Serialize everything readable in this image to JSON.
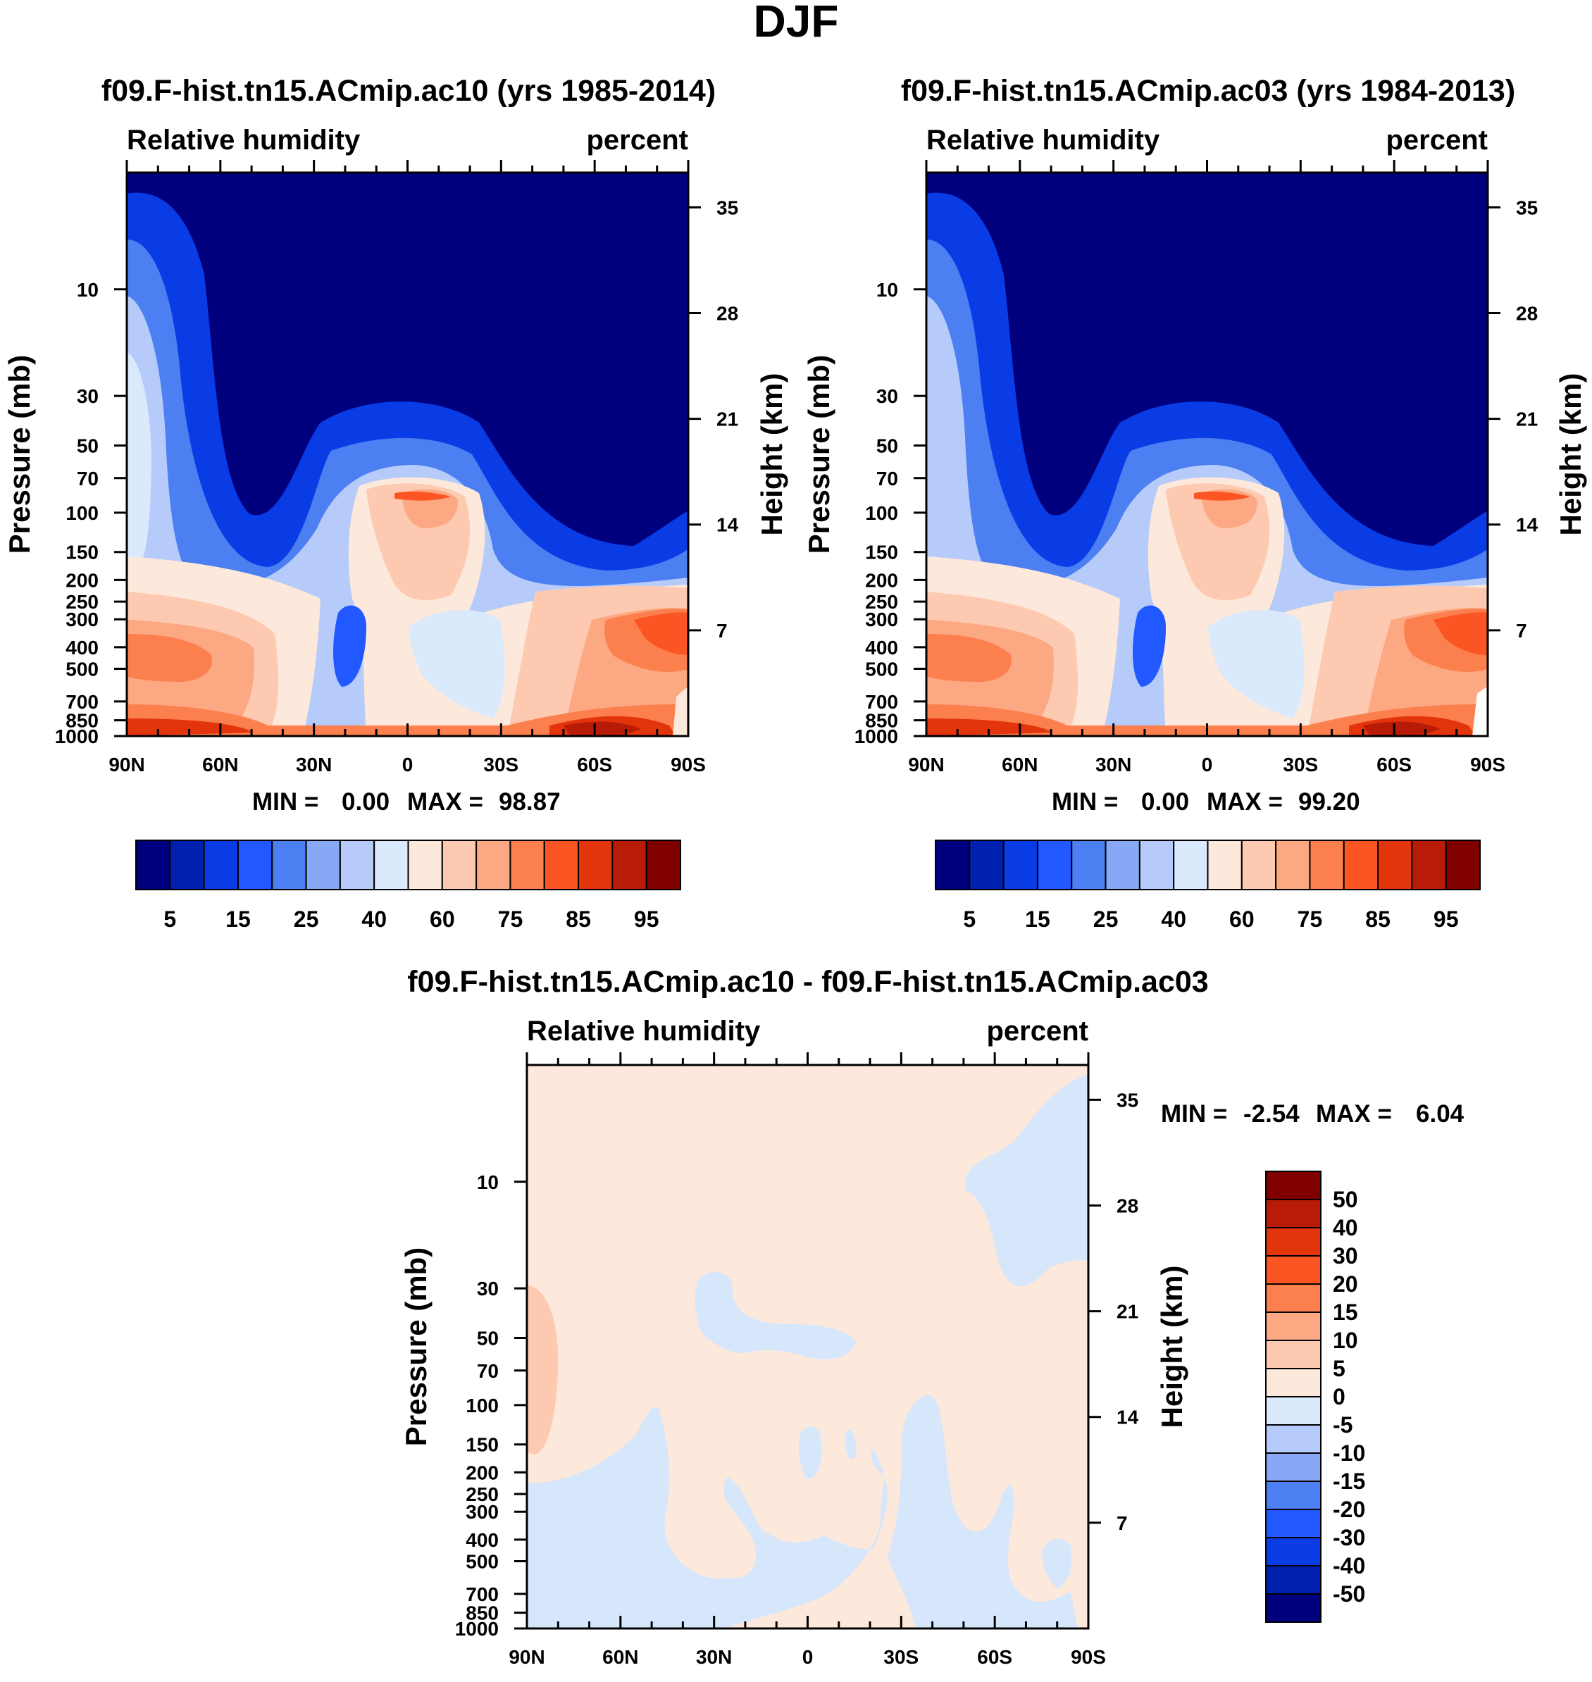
{
  "figure_title": "DJF",
  "chart_data": [
    {
      "type": "heatmap",
      "title": "f09.F-hist.tn15.ACmip.ac10 (yrs 1985-2014)",
      "left_string": "Relative humidity",
      "right_string": "percent",
      "ylabel": "Pressure (mb)",
      "ylabel_right": "Height (km)",
      "x_ticks": [
        "90N",
        "60N",
        "30N",
        "0",
        "30S",
        "60S",
        "90S"
      ],
      "y_ticks": [
        10,
        30,
        50,
        70,
        100,
        150,
        200,
        250,
        300,
        400,
        500,
        700,
        850,
        1000
      ],
      "y_ticks_right": [
        35,
        28,
        21,
        14,
        7
      ],
      "ylim": [
        1000,
        3
      ],
      "min_label": "MIN =",
      "min_value": "0.00",
      "max_label": "MAX =",
      "max_value": "98.87",
      "colorbar_labels": [
        "5",
        "15",
        "25",
        "40",
        "60",
        "75",
        "85",
        "95"
      ]
    },
    {
      "type": "heatmap",
      "title": "f09.F-hist.tn15.ACmip.ac03 (yrs 1984-2013)",
      "left_string": "Relative humidity",
      "right_string": "percent",
      "ylabel": "Pressure (mb)",
      "ylabel_right": "Height (km)",
      "x_ticks": [
        "90N",
        "60N",
        "30N",
        "0",
        "30S",
        "60S",
        "90S"
      ],
      "y_ticks": [
        10,
        30,
        50,
        70,
        100,
        150,
        200,
        250,
        300,
        400,
        500,
        700,
        850,
        1000
      ],
      "y_ticks_right": [
        35,
        28,
        21,
        14,
        7
      ],
      "ylim": [
        1000,
        3
      ],
      "min_label": "MIN =",
      "min_value": "0.00",
      "max_label": "MAX =",
      "max_value": "99.20",
      "colorbar_labels": [
        "5",
        "15",
        "25",
        "40",
        "60",
        "75",
        "85",
        "95"
      ]
    },
    {
      "type": "heatmap",
      "title": "f09.F-hist.tn15.ACmip.ac10 - f09.F-hist.tn15.ACmip.ac03",
      "left_string": "Relative humidity",
      "right_string": "percent",
      "ylabel": "Pressure (mb)",
      "ylabel_right": "Height (km)",
      "x_ticks": [
        "90N",
        "60N",
        "30N",
        "0",
        "30S",
        "60S",
        "90S"
      ],
      "y_ticks": [
        10,
        30,
        50,
        70,
        100,
        150,
        200,
        250,
        300,
        400,
        500,
        700,
        850,
        1000
      ],
      "y_ticks_right": [
        35,
        28,
        21,
        14,
        7
      ],
      "ylim": [
        1000,
        3
      ],
      "min_label": "MIN =",
      "min_value": "-2.54",
      "max_label": "MAX =",
      "max_value": "6.04",
      "colorbar_labels": [
        "50",
        "40",
        "30",
        "20",
        "15",
        "10",
        "5",
        "0",
        "-5",
        "-10",
        "-15",
        "-20",
        "-30",
        "-40",
        "-50"
      ]
    }
  ],
  "colors": {
    "scale": [
      "#00007f",
      "#0021b0",
      "#0a3ce6",
      "#2158ff",
      "#4b7ff2",
      "#88a8f5",
      "#b6cbfa",
      "#dae9fc",
      "#fde9db",
      "#fdc9b0",
      "#fca882",
      "#fc7f4e",
      "#fb5524",
      "#e3350c",
      "#b81c08",
      "#800000"
    ],
    "diff_pos": "#fde9db",
    "diff_pos2": "#fdc9b0",
    "diff_neg": "#d6e6fb"
  }
}
